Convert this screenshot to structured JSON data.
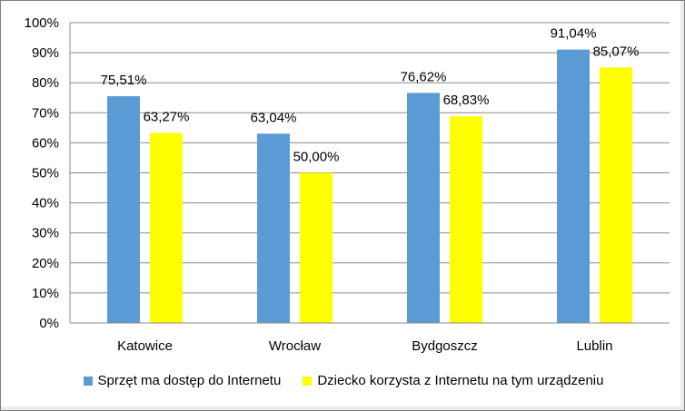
{
  "chart_data": {
    "type": "bar",
    "categories": [
      "Katowice",
      "Wrocław",
      "Bydgoszcz",
      "Lublin"
    ],
    "series": [
      {
        "name": "Sprzęt ma dostęp do Internetu",
        "values": [
          75.51,
          63.04,
          76.62,
          91.04
        ],
        "labels": [
          "75,51%",
          "63,04%",
          "76,62%",
          "91,04%"
        ],
        "color": "#5b9bd5"
      },
      {
        "name": "Dziecko korzysta z Internetu na tym urządzeniu",
        "values": [
          63.27,
          50.0,
          68.83,
          85.07
        ],
        "labels": [
          "63,27%",
          "50,00%",
          "68,83%",
          "85,07%"
        ],
        "color": "#ffff00"
      }
    ],
    "yticks": [
      "0%",
      "10%",
      "20%",
      "30%",
      "40%",
      "50%",
      "60%",
      "70%",
      "80%",
      "90%",
      "100%"
    ],
    "ylim": [
      0,
      100
    ],
    "grid": true,
    "legend_position": "bottom",
    "title": "",
    "xlabel": "",
    "ylabel": ""
  }
}
